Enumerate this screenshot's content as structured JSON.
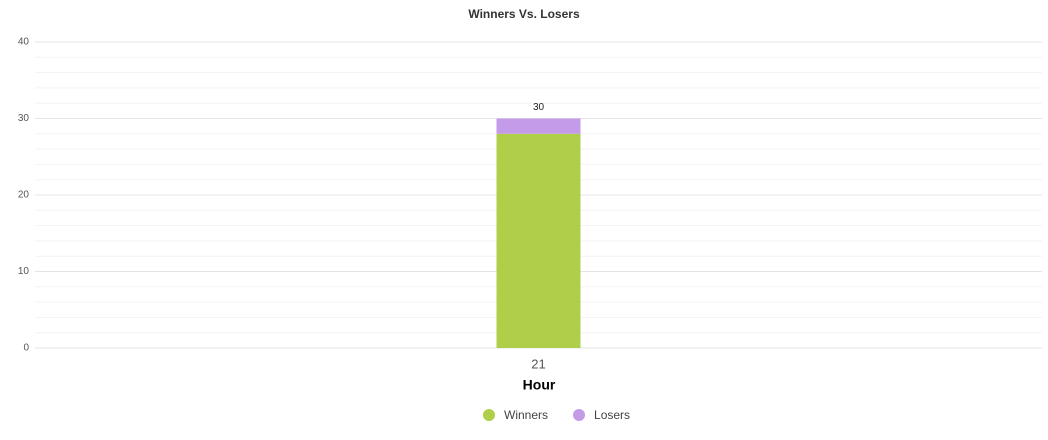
{
  "chart_data": {
    "type": "stacked-bar",
    "title": "Winners Vs. Losers",
    "x_label": "Hour",
    "categories": [
      "21"
    ],
    "series": [
      {
        "name": "Winners",
        "color": "#afcf4a",
        "values": [
          28
        ]
      },
      {
        "name": "Losers",
        "color": "#c39be8",
        "values": [
          2
        ]
      }
    ],
    "totals": [
      30
    ],
    "ylim": [
      0,
      40
    ],
    "yticks": [
      0,
      10,
      20,
      30,
      40
    ],
    "yminorticks": [
      2,
      4,
      6,
      8,
      12,
      14,
      16,
      18,
      22,
      24,
      26,
      28,
      32,
      34,
      36,
      38
    ],
    "grid": true,
    "legend": "bottom"
  }
}
